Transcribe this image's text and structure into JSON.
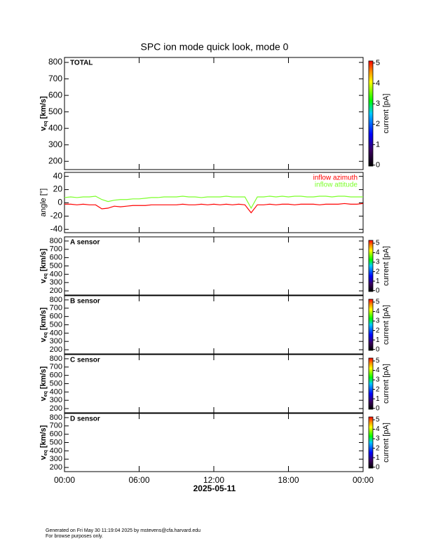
{
  "title": "SPC ion mode quick look, mode 0",
  "x_axis": {
    "label": "2025-05-11",
    "xlim": [
      0,
      24
    ],
    "xticks": [
      {
        "value": 0,
        "label": "00:00"
      },
      {
        "value": 6,
        "label": "06:00"
      },
      {
        "value": 12,
        "label": "12:00"
      },
      {
        "value": 18,
        "label": "18:00"
      },
      {
        "value": 24,
        "label": "00:00"
      }
    ]
  },
  "chart_data": [
    {
      "type": "spectrogram",
      "label": "TOTAL",
      "ylabel": {
        "main": "v",
        "sub": "eq",
        "unit": "[km/s]"
      },
      "ylim": [
        150,
        830
      ],
      "yticks": [
        200,
        300,
        400,
        500,
        600,
        700,
        800
      ],
      "colorbar": {
        "label": "current [pA]",
        "clim": [
          -0.05,
          5.1
        ],
        "ticks": [
          0,
          1,
          2,
          3,
          4,
          5
        ]
      }
    },
    {
      "type": "line",
      "ylabel": "angle [°]",
      "ylim": [
        -45,
        46
      ],
      "yticks": [
        -40,
        -20,
        0,
        20,
        40
      ],
      "legend": "upper right",
      "x": [
        0,
        0.5,
        1,
        1.5,
        2,
        2.5,
        3,
        3.5,
        4,
        4.5,
        5,
        5.5,
        6,
        6.5,
        7,
        7.5,
        8,
        8.5,
        9,
        9.5,
        10,
        10.5,
        11,
        11.5,
        12,
        12.5,
        13,
        13.5,
        14,
        14.5,
        15,
        15.5,
        16,
        16.5,
        17,
        17.5,
        18,
        18.5,
        19,
        19.5,
        20,
        20.5,
        21,
        21.5,
        22,
        22.5,
        23,
        23.5,
        24
      ],
      "series": [
        {
          "name": "inflow azimuth",
          "color": "#ff0000",
          "values": [
            -2,
            -2,
            -3,
            -2,
            -3,
            -3,
            -9,
            -8,
            -5,
            -6,
            -5,
            -4,
            -4,
            -4,
            -3,
            -3,
            -3,
            -3,
            -3,
            -2,
            -3,
            -3,
            -2,
            -3,
            -2,
            -3,
            -2,
            -3,
            -2,
            -3,
            -15,
            -3,
            -3,
            -2,
            -3,
            -2,
            -2,
            -3,
            -2,
            -2,
            -2,
            -3,
            -2,
            -2,
            -2,
            -1,
            -2,
            -2,
            -1
          ]
        },
        {
          "name": "inflow attitude",
          "color": "#7cff2a",
          "values": [
            8,
            9,
            8,
            9,
            9,
            10,
            5,
            2,
            4,
            5,
            5,
            6,
            6,
            7,
            8,
            8,
            9,
            9,
            9,
            10,
            9,
            9,
            8,
            9,
            9,
            9,
            10,
            9,
            9,
            9,
            -8,
            9,
            9,
            10,
            9,
            10,
            9,
            10,
            10,
            9,
            9,
            10,
            10,
            9,
            10,
            10,
            9,
            9,
            9
          ]
        }
      ]
    },
    {
      "type": "spectrogram",
      "label": "A sensor",
      "ylabel": {
        "main": "v",
        "sub": "eq",
        "unit": "[km/s]"
      },
      "ylim": [
        150,
        850
      ],
      "yticks": [
        200,
        300,
        400,
        500,
        600,
        700,
        800
      ],
      "colorbar": {
        "label": "current [pA]",
        "clim": [
          -0.1,
          5.3
        ],
        "ticks": [
          0,
          1,
          2,
          3,
          4,
          5
        ]
      }
    },
    {
      "type": "spectrogram",
      "label": "B sensor",
      "ylabel": {
        "main": "v",
        "sub": "eq",
        "unit": "[km/s]"
      },
      "ylim": [
        150,
        850
      ],
      "yticks": [
        200,
        300,
        400,
        500,
        600,
        700,
        800
      ],
      "colorbar": {
        "label": "current [pA]",
        "clim": [
          -0.1,
          5.3
        ],
        "ticks": [
          0,
          1,
          2,
          3,
          4,
          5
        ]
      }
    },
    {
      "type": "spectrogram",
      "label": "C sensor",
      "ylabel": {
        "main": "v",
        "sub": "eq",
        "unit": "[km/s]"
      },
      "ylim": [
        150,
        850
      ],
      "yticks": [
        200,
        300,
        400,
        500,
        600,
        700,
        800
      ],
      "colorbar": {
        "label": "current [pA]",
        "clim": [
          -0.1,
          5.3
        ],
        "ticks": [
          0,
          1,
          2,
          3,
          4,
          5
        ]
      }
    },
    {
      "type": "spectrogram",
      "label": "D sensor",
      "ylabel": {
        "main": "v",
        "sub": "eq",
        "unit": "[km/s]"
      },
      "ylim": [
        150,
        850
      ],
      "yticks": [
        200,
        300,
        400,
        500,
        600,
        700,
        800
      ],
      "colorbar": {
        "label": "current [pA]",
        "clim": [
          -0.1,
          5.3
        ],
        "ticks": [
          0,
          1,
          2,
          3,
          4,
          5
        ]
      }
    }
  ],
  "footer": [
    "Generated on Fri May 30 11:19:04 2025 by mstevens@cfa.harvard.edu",
    "For browse purposes only."
  ]
}
